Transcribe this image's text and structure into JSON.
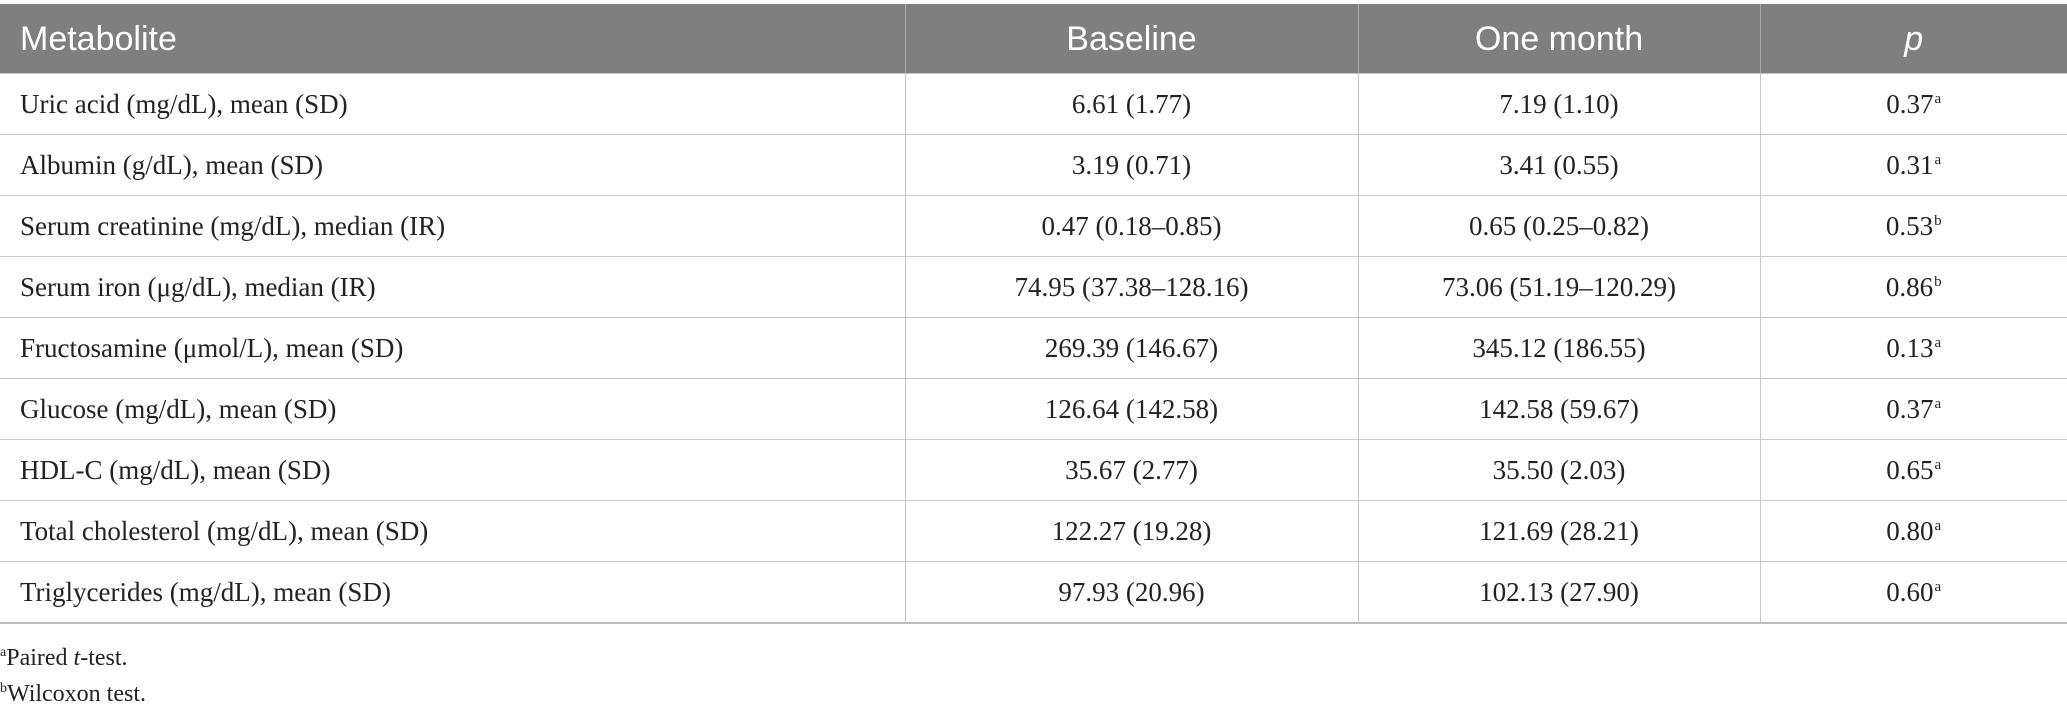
{
  "table": {
    "headers": {
      "metabolite": "Metabolite",
      "baseline": "Baseline",
      "one_month": "One month",
      "p": "p"
    },
    "rows": [
      {
        "metabolite": "Uric acid (mg/dL), mean (SD)",
        "baseline": "6.61 (1.77)",
        "one_month": "7.19 (1.10)",
        "p": "0.37",
        "p_note": "a"
      },
      {
        "metabolite": "Albumin (g/dL), mean (SD)",
        "baseline": "3.19 (0.71)",
        "one_month": "3.41 (0.55)",
        "p": "0.31",
        "p_note": "a"
      },
      {
        "metabolite": "Serum creatinine (mg/dL), median (IR)",
        "baseline": "0.47 (0.18–0.85)",
        "one_month": "0.65 (0.25–0.82)",
        "p": "0.53",
        "p_note": "b"
      },
      {
        "metabolite": "Serum iron (μg/dL), median (IR)",
        "baseline": "74.95 (37.38–128.16)",
        "one_month": "73.06 (51.19–120.29)",
        "p": "0.86",
        "p_note": "b"
      },
      {
        "metabolite": "Fructosamine (μmol/L), mean (SD)",
        "baseline": "269.39 (146.67)",
        "one_month": "345.12 (186.55)",
        "p": "0.13",
        "p_note": "a"
      },
      {
        "metabolite": "Glucose (mg/dL), mean (SD)",
        "baseline": "126.64 (142.58)",
        "one_month": "142.58 (59.67)",
        "p": "0.37",
        "p_note": "a"
      },
      {
        "metabolite": "HDL-C (mg/dL), mean (SD)",
        "baseline": "35.67 (2.77)",
        "one_month": "35.50 (2.03)",
        "p": "0.65",
        "p_note": "a"
      },
      {
        "metabolite": "Total cholesterol (mg/dL), mean (SD)",
        "baseline": "122.27 (19.28)",
        "one_month": "121.69 (28.21)",
        "p": "0.80",
        "p_note": "a"
      },
      {
        "metabolite": "Triglycerides (mg/dL), mean (SD)",
        "baseline": "97.93 (20.96)",
        "one_month": "102.13 (27.90)",
        "p": "0.60",
        "p_note": "a"
      }
    ]
  },
  "footnotes": {
    "a": {
      "mark": "a",
      "before": "Paired ",
      "italic": "t",
      "after": "-test."
    },
    "b": {
      "mark": "b",
      "before": "Wilcoxon test.",
      "italic": "",
      "after": ""
    }
  },
  "colors": {
    "header_bg": "#7f7f7f",
    "header_text": "#ffffff",
    "grid": "#c8c8c8"
  }
}
